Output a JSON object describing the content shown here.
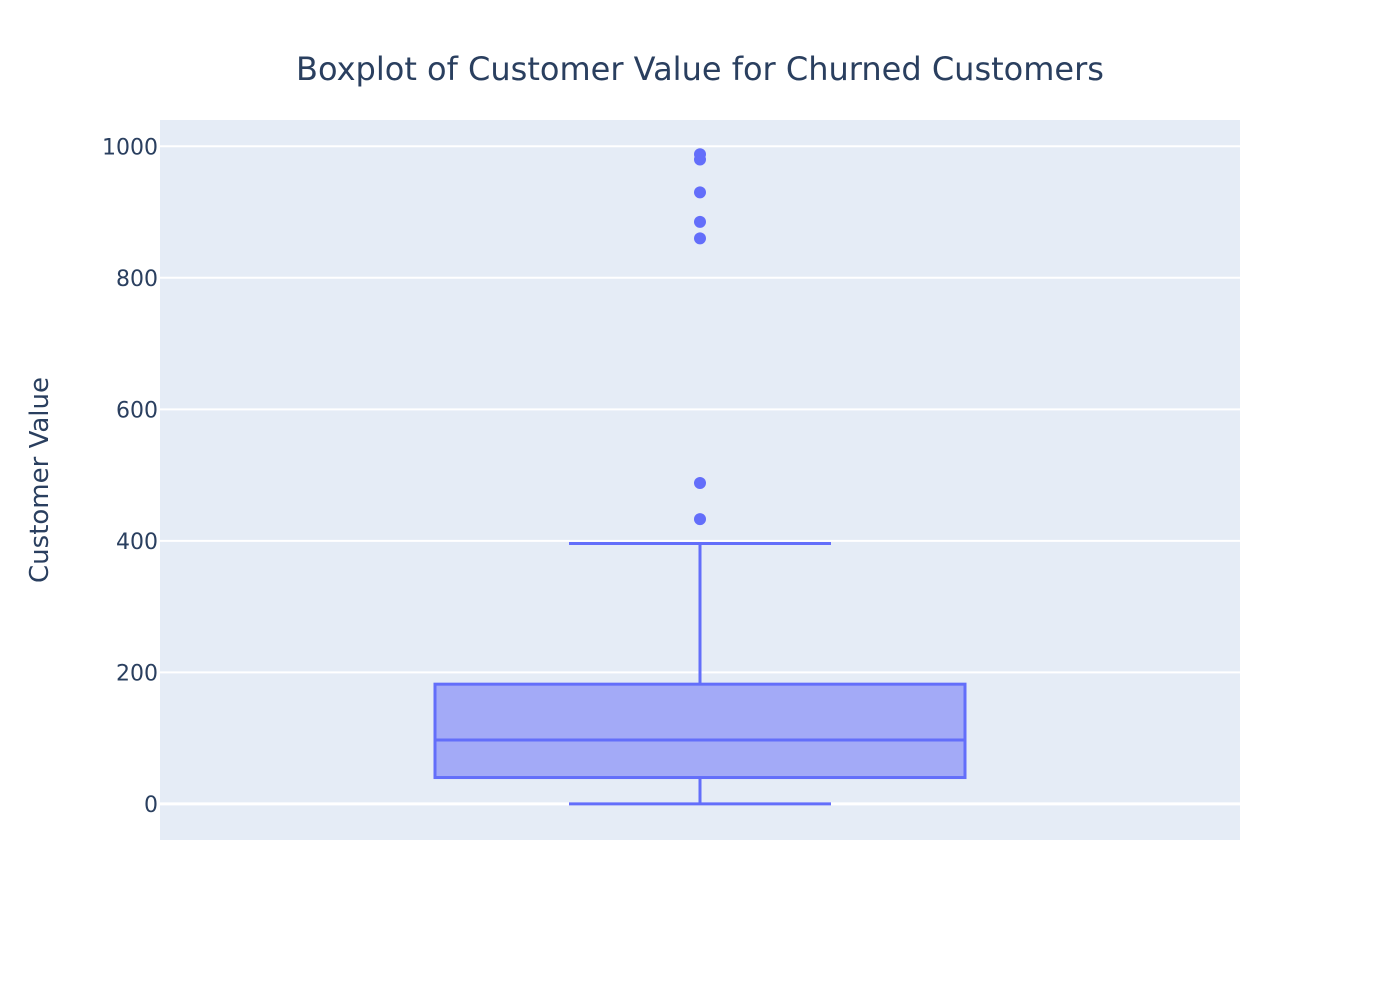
{
  "chart_data": {
    "type": "box",
    "title": "Boxplot of Customer Value for Churned Customers",
    "xlabel": "",
    "ylabel": "Customer Value",
    "ylim": [
      -55,
      1040
    ],
    "yticks": [
      0,
      200,
      400,
      600,
      800,
      1000
    ],
    "grid": true,
    "colors": {
      "plot_bg": "#e5ecf6",
      "grid": "#ffffff",
      "box_line": "#636efa",
      "box_fill": "#a3aaf7",
      "text": "#2a3f5f"
    },
    "box": {
      "lower_whisker": 0,
      "q1": 40,
      "median": 97,
      "q3": 182,
      "upper_whisker": 396
    },
    "outliers": [
      433,
      488,
      860,
      885,
      930,
      980,
      988
    ]
  }
}
